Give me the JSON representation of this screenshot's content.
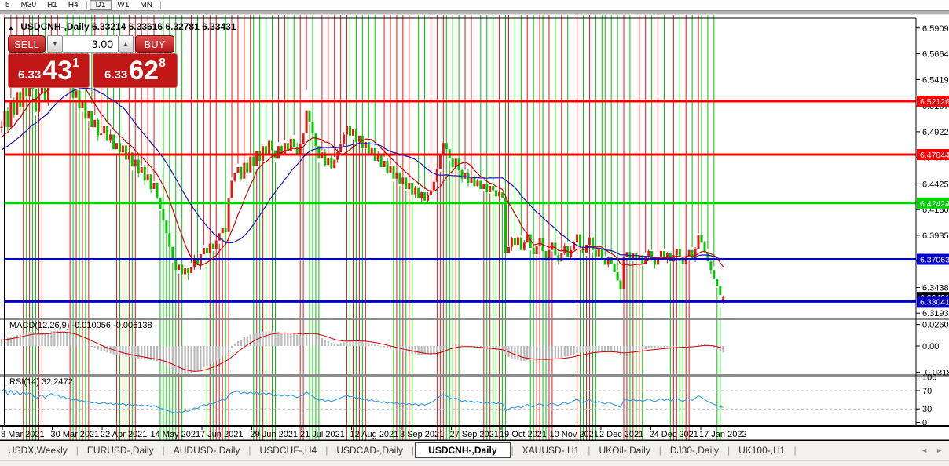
{
  "toolbar": {
    "timeframes": [
      "5",
      "M30",
      "H1",
      "H4",
      "D1",
      "W1",
      "MN"
    ],
    "active": "D1"
  },
  "chart_header": {
    "collapse_icon": "▲",
    "symbol": "USDCNH-,Daily",
    "ohlc": "6.33214 6.33616 6.32781 6.33431"
  },
  "trade_panel": {
    "sell_label": "SELL",
    "buy_label": "BUY",
    "volume": "3.00",
    "spin_down_icon": "▼",
    "spin_up_icon": "▲",
    "sell_price": {
      "prefix": "6.33",
      "big": "43",
      "sup": "1"
    },
    "buy_price": {
      "prefix": "6.33",
      "big": "62",
      "sup": "8"
    }
  },
  "chart_data": {
    "type": "candlestick",
    "symbol": "USDCNH-,Daily",
    "title": "USDCNH-,Daily 6.33214 6.33616 6.32781 6.33431",
    "colors": {
      "up": "#e81515",
      "down": "#00c400",
      "ma_fast": "#cc0000",
      "ma_slow": "#1414b4",
      "macd_bar": "#b9b9b9",
      "macd_signal": "#cc0000",
      "rsi_line": "#3399e6"
    },
    "price_axis_ticks": [
      "6.59090",
      "6.56640",
      "6.54190",
      "6.51670",
      "6.49220",
      "6.46770",
      "6.44250",
      "6.41800",
      "6.39350",
      "6.36890",
      "6.34380",
      "6.31930"
    ],
    "hlines": [
      {
        "price": 6.52126,
        "label": "6.52126",
        "color": "#ff0000"
      },
      {
        "price": 6.47044,
        "label": "6.47044",
        "color": "#ff0000"
      },
      {
        "price": 6.42424,
        "label": "6.42424",
        "color": "#00d400"
      },
      {
        "price": 6.37063,
        "label": "6.37063",
        "color": "#0000cc"
      },
      {
        "price": 6.33041,
        "label": "6.33041",
        "color": "#0000cc"
      }
    ],
    "bid_marker": {
      "price": 6.33431,
      "label": "6.33431",
      "color": "#000000"
    },
    "date_labels": [
      "8 Mar 2021",
      "30 Mar 2021",
      "22 Apr 2021",
      "14 May 2021",
      "7 Jun 2021",
      "29 Jun 2021",
      "21 Jul 2021",
      "12 Aug 2021",
      "3 Sep 2021",
      "27 Sep 2021",
      "19 Oct 2021",
      "10 Nov 2021",
      "2 Dec 2021",
      "24 Dec 2021",
      "17 Jan 2022"
    ],
    "macd": {
      "label": "MACD(12,26,9) -0.010056 -0.006138",
      "axis": [
        "0.02607",
        "0.00",
        "-0.03187"
      ]
    },
    "rsi": {
      "label": "RSI(14) 32.2472",
      "axis": [
        "100",
        "70",
        "30",
        "0"
      ],
      "levels": [
        70,
        30
      ]
    },
    "pre_closes": [
      6.455,
      6.46,
      6.456,
      6.462,
      6.458,
      6.465,
      6.461,
      6.468,
      6.464,
      6.471,
      6.467,
      6.474,
      6.47,
      6.477,
      6.473,
      6.48,
      6.476,
      6.483,
      6.479,
      6.486,
      6.482,
      6.489,
      6.485,
      6.492,
      6.496
    ],
    "closes": [
      6.497,
      6.512,
      6.4965,
      6.522,
      6.508,
      6.53,
      6.5155,
      6.5415,
      6.5255,
      6.5475,
      6.533,
      6.511,
      6.5285,
      6.5455,
      6.5215,
      6.552,
      6.5715,
      6.558,
      6.5645,
      6.5455,
      6.5525,
      6.5345,
      6.542,
      6.5245,
      6.5315,
      6.5145,
      6.521,
      6.5045,
      6.512,
      6.4965,
      6.5035,
      6.489,
      6.4905,
      6.4975,
      6.4835,
      6.4895,
      6.4755,
      6.4815,
      6.4725,
      6.479,
      6.4655,
      6.4725,
      6.459,
      6.4655,
      6.4525,
      6.4585,
      6.4455,
      6.4515,
      6.4375,
      6.4435,
      6.4295,
      6.4185,
      6.4075,
      6.3955,
      6.3825,
      6.3705,
      6.3605,
      6.3655,
      6.3565,
      6.3625,
      6.3575,
      6.3635,
      6.3705,
      6.3655,
      6.3755,
      6.3815,
      6.3765,
      6.3855,
      6.3805,
      6.3885,
      6.3955,
      6.4005,
      6.3965,
      6.4285,
      6.4455,
      6.4525,
      6.4585,
      6.4475,
      6.4625,
      6.4535,
      6.4685,
      6.4595,
      6.4735,
      6.4645,
      6.4785,
      6.4705,
      6.4835,
      6.4745,
      6.4665,
      6.4785,
      6.4705,
      6.4815,
      6.4735,
      6.4855,
      6.4775,
      6.4705,
      6.4805,
      6.4905,
      6.5125,
      6.5015,
      6.4905,
      6.4785,
      6.4665,
      6.4725,
      6.4605,
      6.4675,
      6.4575,
      6.4655,
      6.4725,
      6.4805,
      6.4895,
      6.4975,
      6.4885,
      6.4945,
      6.4825,
      6.4885,
      6.4765,
      6.4825,
      6.4705,
      6.4765,
      6.4645,
      6.4705,
      6.4585,
      6.4645,
      6.4525,
      6.4595,
      6.4475,
      6.4535,
      6.4425,
      6.4485,
      6.4375,
      6.4435,
      6.4325,
      6.4385,
      6.4285,
      6.4345,
      6.4265,
      6.4315,
      6.4365,
      6.4445,
      6.4565,
      6.4705,
      6.4815,
      6.4755,
      6.4665,
      6.4585,
      6.4665,
      6.4555,
      6.4475,
      6.4525,
      6.4435,
      6.4485,
      6.4405,
      6.4455,
      6.4375,
      6.4425,
      6.4345,
      6.4405,
      6.4365,
      6.4305,
      6.4345,
      6.4285,
      6.3765,
      6.3825,
      6.3905,
      6.3845,
      6.3915,
      6.3795,
      6.3865,
      6.3945,
      6.3815,
      6.3755,
      6.3835,
      6.3905,
      6.3785,
      6.3715,
      6.3795,
      6.3865,
      6.3745,
      6.3685,
      6.3765,
      6.3835,
      6.3725,
      6.3795,
      6.3875,
      6.3945,
      6.3825,
      6.3765,
      6.3845,
      6.3915,
      6.3795,
      6.3735,
      6.3805,
      6.3715,
      6.3655,
      6.3725,
      6.3665,
      6.3585,
      6.3505,
      6.3425,
      6.3725,
      6.3775,
      6.3705,
      6.3765,
      6.3695,
      6.3745,
      6.3665,
      6.3725,
      6.3785,
      6.3715,
      6.3655,
      6.3725,
      6.3785,
      6.3705,
      6.3765,
      6.3685,
      6.3745,
      6.3805,
      6.3725,
      6.3665,
      6.3735,
      6.3795,
      6.3715,
      6.3805,
      6.3935,
      6.3865,
      6.3775,
      6.3685,
      6.3605,
      6.3525,
      6.3455,
      6.3365,
      6.3343
    ],
    "wick_overrides": {
      "60": {
        "low": 6.351
      },
      "98": {
        "high": 6.532
      },
      "199": {
        "low": 6.329
      },
      "231": {
        "low": 6.3255
      },
      "232": {
        "open": 6.33214,
        "high": 6.33616,
        "low": 6.32781
      }
    }
  },
  "tab_bar": {
    "tabs": [
      "USDX,Weekly",
      "EURUSD-,Daily",
      "AUDUSD-,Daily",
      "USDCHF-,H4",
      "USDCAD-,Daily",
      "USDCNH-,Daily",
      "XAUUSD-,H1",
      "UKOil-,Daily",
      "DJ30-,Daily",
      "UK100-,H1"
    ],
    "active": "USDCNH-,Daily",
    "scroll_left_icon": "◄",
    "scroll_right_icon": "►"
  }
}
